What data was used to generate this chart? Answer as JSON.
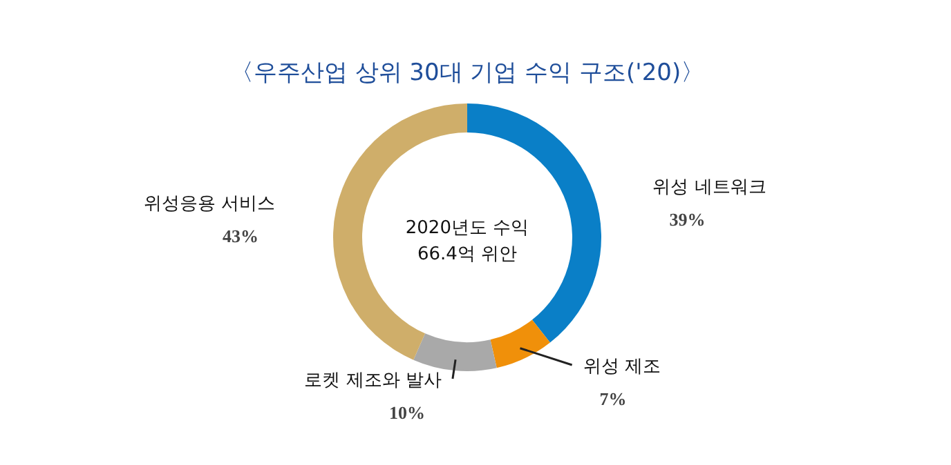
{
  "chart_data": {
    "type": "donut",
    "title": "〈우주산업 상위 30대 기업 수익 구조('20)〉",
    "categories": [
      "위성 네트워크",
      "위성 제조",
      "로켓 제조와 발사",
      "위성응용 서비스"
    ],
    "values": [
      39,
      7,
      10,
      43
    ],
    "colors": [
      "#0a7fc7",
      "#f0900a",
      "#a9a9a9",
      "#cfae6a"
    ],
    "value_labels": [
      "39%",
      "7%",
      "10%",
      "43%"
    ],
    "annotations": [
      "2020년도 수익",
      "66.4억 위안"
    ]
  }
}
